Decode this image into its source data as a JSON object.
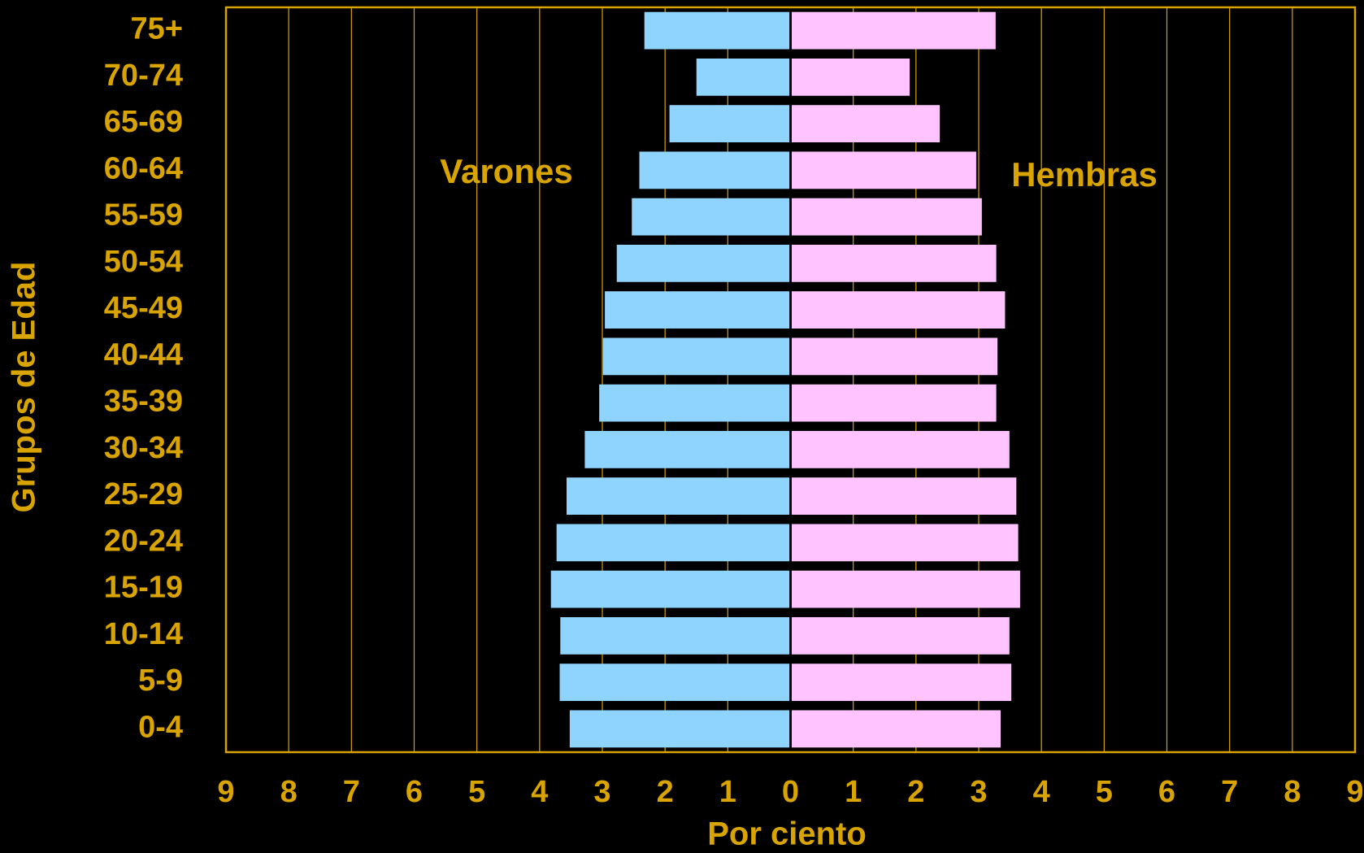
{
  "chart_data": {
    "type": "pyramid",
    "categories": [
      "0-4",
      "5-9",
      "10-14",
      "15-19",
      "20-24",
      "25-29",
      "30-34",
      "35-39",
      "40-44",
      "45-49",
      "50-54",
      "55-59",
      "60-64",
      "65-69",
      "70-74",
      "75+"
    ],
    "series": [
      {
        "name": "Varones",
        "color": "#8fd3ff",
        "values": [
          -3.52,
          -3.68,
          -3.67,
          -3.82,
          -3.73,
          -3.57,
          -3.28,
          -3.05,
          -2.99,
          -2.96,
          -2.77,
          -2.53,
          -2.41,
          -1.93,
          -1.5,
          -2.33
        ]
      },
      {
        "name": "Hembras",
        "color": "#ffc4ff",
        "values": [
          3.35,
          3.52,
          3.49,
          3.66,
          3.63,
          3.6,
          3.49,
          3.28,
          3.3,
          3.42,
          3.28,
          3.05,
          2.96,
          2.38,
          1.9,
          3.27
        ]
      }
    ],
    "xlabel": "Por ciento",
    "ylabel": "Grupos de Edad",
    "xlim": [
      -9,
      9
    ],
    "xticks": [
      {
        "value": -9,
        "label": "9"
      },
      {
        "value": -8,
        "label": "8"
      },
      {
        "value": -7,
        "label": "7"
      },
      {
        "value": -6,
        "label": "6"
      },
      {
        "value": -5,
        "label": "5"
      },
      {
        "value": -4,
        "label": "4"
      },
      {
        "value": -3,
        "label": "3"
      },
      {
        "value": -2,
        "label": "2"
      },
      {
        "value": -1,
        "label": "1"
      },
      0,
      1,
      2,
      3,
      4,
      5,
      6,
      7,
      8,
      9
    ],
    "grid": true
  }
}
